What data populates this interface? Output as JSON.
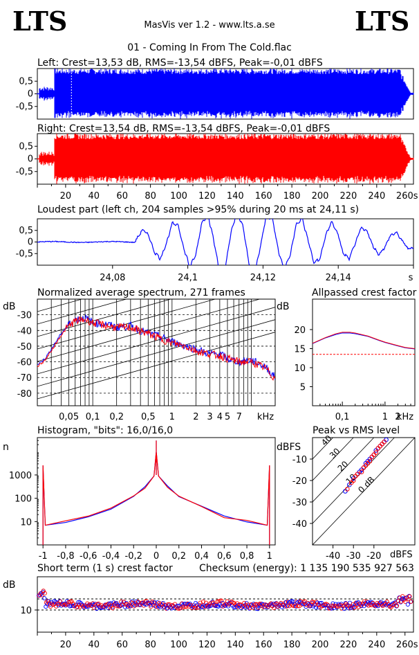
{
  "header": {
    "logo_left": "LTS",
    "logo_right": "LTS",
    "app_title": "MasVis ver 1.2 - www.lts.a.se",
    "file_title": "01 - Coming In From The Cold.flac"
  },
  "colors": {
    "left": "#0000ff",
    "right": "#ff0000",
    "grid": "#000000"
  },
  "chart_data": [
    {
      "id": "left-waveform",
      "type": "area",
      "title": "Left: Crest=13,53 dB, RMS=-13,54 dBFS, Peak=-0,01 dBFS",
      "ylim": [
        -1,
        1
      ],
      "yticks": [
        "0,5",
        "0",
        "-0,5"
      ],
      "duration_s": 264,
      "series": [
        {
          "name": "Left",
          "envelope_start_s": 1,
          "envelope_full_from_s": 12,
          "envelope_fade_from_s": 257
        }
      ]
    },
    {
      "id": "right-waveform",
      "type": "area",
      "title": "Right: Crest=13,54 dB, RMS=-13,54 dBFS, Peak=-0,01 dBFS",
      "ylim": [
        -1,
        1
      ],
      "yticks": [
        "0,5",
        "0",
        "-0,5"
      ],
      "xticks": [
        "20",
        "40",
        "60",
        "80",
        "100",
        "120",
        "140",
        "160",
        "180",
        "200",
        "220",
        "240",
        "260s"
      ],
      "xlim": [
        0,
        266
      ],
      "series": [
        {
          "name": "Right",
          "envelope_start_s": 1,
          "envelope_full_from_s": 12,
          "envelope_fade_from_s": 257
        }
      ]
    },
    {
      "id": "loudest-part",
      "type": "line",
      "title": "Loudest part (left  ch, 204 samples >95% during 20 ms at 24,11 s)",
      "ylim": [
        -1,
        1
      ],
      "yticks": [
        "0,5",
        "0",
        "-0,5"
      ],
      "xticks": [
        "24,08",
        "24,1",
        "24,12",
        "24,14",
        "s"
      ],
      "xlim": [
        24.06,
        24.16
      ]
    },
    {
      "id": "spectrum",
      "type": "line",
      "title": "Normalized average spectrum, 271 frames",
      "ylabel": "dB",
      "yticks": [
        "-30",
        "-40",
        "-50",
        "-60",
        "-70",
        "-80"
      ],
      "ylim": [
        -88,
        -20
      ],
      "xticks": [
        "0,05",
        "0,1",
        "0,2",
        "0,5",
        "1",
        "2",
        "3",
        "4",
        "5",
        "7",
        "kHz"
      ],
      "xlim_khz": [
        0.02,
        20
      ],
      "series": [
        {
          "name": "Left",
          "x_khz": [
            0.02,
            0.025,
            0.03,
            0.04,
            0.05,
            0.06,
            0.08,
            0.1,
            0.15,
            0.2,
            0.3,
            0.5,
            0.7,
            1,
            1.5,
            2,
            3,
            4,
            5,
            7,
            10,
            15,
            20
          ],
          "y": [
            -62,
            -58,
            -52,
            -42,
            -36,
            -33,
            -32,
            -35,
            -36,
            -38,
            -37,
            -42,
            -44,
            -47,
            -50,
            -52,
            -55,
            -55,
            -58,
            -60,
            -59,
            -63,
            -70
          ]
        },
        {
          "name": "Right",
          "x_khz": [
            0.02,
            0.025,
            0.03,
            0.04,
            0.05,
            0.06,
            0.08,
            0.1,
            0.15,
            0.2,
            0.3,
            0.5,
            0.7,
            1,
            1.5,
            2,
            3,
            4,
            5,
            7,
            10,
            15,
            20
          ],
          "y": [
            -63,
            -59,
            -53,
            -43,
            -37,
            -34,
            -33,
            -35,
            -37,
            -38,
            -38,
            -42,
            -45,
            -48,
            -50,
            -53,
            -55,
            -56,
            -58,
            -60,
            -60,
            -64,
            -71
          ]
        }
      ]
    },
    {
      "id": "allpassed-crest",
      "type": "line",
      "title": "Allpassed crest factor",
      "ylabel": "dB",
      "yticks": [
        "20",
        "15",
        "10",
        "5"
      ],
      "ylim": [
        0,
        28
      ],
      "xticks": [
        "0,1",
        "1",
        "2",
        "kHz"
      ],
      "xlim_khz": [
        0.02,
        5
      ],
      "reference_db": 13.5,
      "series": [
        {
          "name": "Left",
          "x_khz": [
            0.02,
            0.04,
            0.07,
            0.1,
            0.15,
            0.2,
            0.4,
            0.7,
            1,
            2,
            3,
            5
          ],
          "y": [
            16.3,
            17.8,
            18.7,
            19.1,
            19.1,
            18.9,
            18.2,
            17.2,
            16.6,
            15.7,
            15.2,
            14.9
          ]
        },
        {
          "name": "Right",
          "x_khz": [
            0.02,
            0.04,
            0.07,
            0.1,
            0.15,
            0.2,
            0.4,
            0.7,
            1,
            2,
            3,
            5
          ],
          "y": [
            16.4,
            17.9,
            18.9,
            19.3,
            19.3,
            19.1,
            18.3,
            17.3,
            16.7,
            15.8,
            15.3,
            15.0
          ]
        }
      ]
    },
    {
      "id": "histogram",
      "type": "line",
      "title": "Histogram, \"bits\": 16,0/16,0",
      "ylabel": "n",
      "yscale": "log",
      "yticks": [
        "1000",
        "100",
        "10"
      ],
      "ylim": [
        1,
        40000
      ],
      "xticks": [
        "-1",
        "-0,8",
        "-0,6",
        "-0,4",
        "-0,2",
        "0",
        "0,2",
        "0,4",
        "0,6",
        "0,8",
        "1"
      ],
      "xlim": [
        -1.05,
        1.05
      ],
      "series": [
        {
          "name": "Left",
          "x": [
            -1,
            -0.98,
            -0.8,
            -0.6,
            -0.4,
            -0.2,
            -0.1,
            -0.02,
            0,
            0.02,
            0.1,
            0.2,
            0.4,
            0.6,
            0.8,
            0.98,
            1
          ],
          "y": [
            2500,
            7,
            10,
            17,
            40,
            130,
            300,
            900,
            10000,
            900,
            300,
            130,
            40,
            17,
            10,
            7,
            2500
          ]
        },
        {
          "name": "Right",
          "x": [
            -1,
            -0.98,
            -0.8,
            -0.6,
            -0.4,
            -0.2,
            -0.1,
            -0.02,
            0,
            0.02,
            0.1,
            0.2,
            0.4,
            0.6,
            0.8,
            0.98,
            1
          ],
          "y": [
            2600,
            7,
            10,
            17,
            40,
            130,
            300,
            900,
            10000,
            900,
            300,
            130,
            40,
            17,
            10,
            7,
            2600
          ]
        }
      ]
    },
    {
      "id": "peak-vs-rms",
      "type": "scatter",
      "title": "Peak vs RMS level",
      "ylabel": "dBFS",
      "xlabel": "dBFS",
      "yticks": [
        "-10",
        "-20",
        "-30",
        "-40"
      ],
      "ylim": [
        -50,
        0
      ],
      "xticks": [
        "-40",
        "-30",
        "-20"
      ],
      "xlim": [
        -50,
        0
      ],
      "diagonal_labels": [
        "40",
        "30",
        "20",
        "10",
        "0 dB"
      ],
      "series": [
        {
          "name": "Left",
          "x": [
            -34,
            -32,
            -30,
            -28,
            -27,
            -26,
            -25,
            -24,
            -23,
            -22,
            -21,
            -20,
            -19,
            -18,
            -17,
            -16,
            -15,
            -14
          ],
          "y": [
            -25,
            -22,
            -19,
            -17,
            -16,
            -15,
            -14,
            -12,
            -11,
            -10,
            -9,
            -8,
            -6,
            -5,
            -4,
            -3,
            -2,
            -1
          ]
        },
        {
          "name": "Right",
          "x": [
            -33,
            -31,
            -30,
            -29,
            -28,
            -26,
            -25,
            -24,
            -23,
            -22,
            -21,
            -20,
            -19,
            -18,
            -17,
            -16,
            -15
          ],
          "y": [
            -24,
            -21,
            -20,
            -18,
            -17,
            -16,
            -14,
            -13,
            -12,
            -11,
            -9,
            -8,
            -7,
            -5,
            -4,
            -3,
            -2
          ]
        }
      ]
    },
    {
      "id": "short-term-crest",
      "type": "scatter",
      "title": "Short term (1 s) crest factor",
      "annotation": "Checksum (energy):  1 135 190 535 927 563",
      "ylabel": "dB",
      "yticks": [
        "10"
      ],
      "ylim": [
        0,
        25
      ],
      "reference_lines_db": [
        10,
        15
      ],
      "xticks": [
        "20",
        "40",
        "60",
        "80",
        "100",
        "120",
        "140",
        "160",
        "180",
        "200",
        "220",
        "240",
        "260s"
      ],
      "xlim": [
        0,
        266
      ]
    }
  ]
}
